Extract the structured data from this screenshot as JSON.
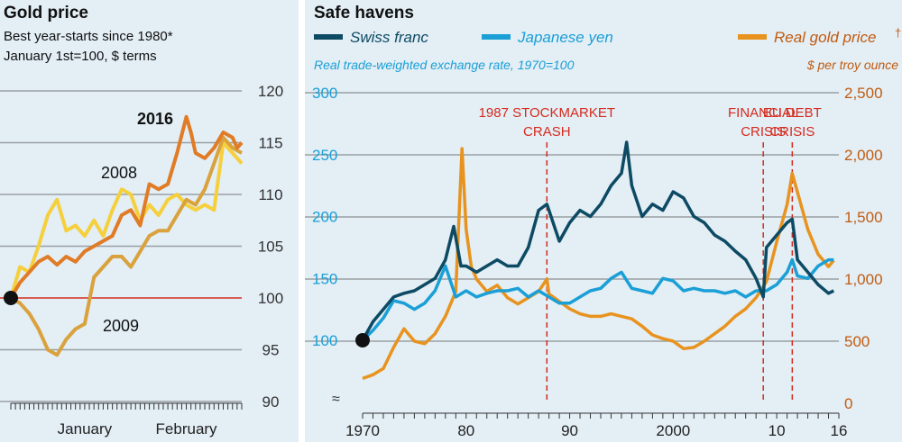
{
  "left": {
    "title": "Gold price",
    "subtitle_line1": "Best year-starts since 1980*",
    "subtitle_line2": "January 1st=100, $ terms",
    "x_tick_labels": [
      "January",
      "February"
    ],
    "chart_data": {
      "type": "line",
      "title": "Gold price",
      "subtitle": "Best year-starts since 1980* January 1st=100, $ terms",
      "ylim": [
        90,
        120
      ],
      "y_ticks": [
        90,
        95,
        100,
        105,
        110,
        115,
        120
      ],
      "x_range_days": [
        0,
        50
      ],
      "x_label_positions": {
        "January": 16,
        "February": 38
      },
      "reference_line": 100,
      "series": [
        {
          "name": "2016",
          "color": "#e07b26",
          "x": [
            0,
            2,
            4,
            6,
            8,
            10,
            12,
            14,
            16,
            18,
            20,
            22,
            24,
            26,
            28,
            30,
            32,
            34,
            36,
            38,
            39,
            40,
            42,
            44,
            46,
            48,
            49,
            50
          ],
          "values": [
            100,
            101.5,
            102.5,
            103.5,
            104,
            103.2,
            104,
            103.5,
            104.5,
            105,
            105.5,
            106,
            108,
            108.5,
            107,
            111,
            110.5,
            111,
            114,
            117.5,
            116,
            114,
            113.5,
            114.5,
            116,
            115.5,
            114.5,
            115
          ]
        },
        {
          "name": "2008",
          "color": "#f5d03c",
          "x": [
            0,
            2,
            4,
            6,
            8,
            10,
            12,
            14,
            16,
            18,
            20,
            22,
            24,
            26,
            28,
            30,
            32,
            34,
            36,
            38,
            40,
            42,
            44,
            46,
            48,
            50
          ],
          "values": [
            100,
            103,
            102.5,
            105,
            108,
            109.5,
            106.5,
            107,
            106,
            107.5,
            106,
            108.5,
            110.5,
            110,
            107.5,
            109,
            108,
            109.5,
            110,
            109,
            108.5,
            109,
            108.5,
            115,
            114,
            113
          ]
        },
        {
          "name": "2009",
          "color": "#d9a23c",
          "x": [
            0,
            2,
            4,
            6,
            8,
            10,
            12,
            14,
            16,
            18,
            20,
            22,
            24,
            26,
            28,
            30,
            32,
            34,
            36,
            38,
            40,
            42,
            44,
            46,
            48,
            50
          ],
          "values": [
            100,
            99.5,
            98.5,
            97,
            95,
            94.5,
            96,
            97,
            97.5,
            102,
            103,
            104,
            104,
            103,
            104.5,
            106,
            106.5,
            106.5,
            108,
            109.5,
            109,
            110.5,
            113,
            115.5,
            114.5,
            114
          ]
        }
      ],
      "series_labels": [
        "2016",
        "2008",
        "2009"
      ]
    }
  },
  "right": {
    "title": "Safe havens",
    "legend": [
      {
        "label": "Swiss franc",
        "color": "#0d4a63"
      },
      {
        "label": "Japanese yen",
        "color": "#1a9fd6"
      },
      {
        "label": "Real gold price",
        "color": "#e8931e"
      }
    ],
    "legend_dagger": "†",
    "left_axis_note": "Real trade-weighted exchange rate, 1970=100",
    "right_axis_note": "$ per troy ounce",
    "axis_break_symbol": "≈",
    "annotations": [
      {
        "year": 1987.8,
        "line1": "1987 STOCKMARKET",
        "line2": "CRASH"
      },
      {
        "year": 2008.7,
        "line1": "FINANCIAL",
        "line2": "CRISIS"
      },
      {
        "year": 2011.5,
        "line1": "EU DEBT",
        "line2": "CRISIS"
      }
    ],
    "chart_data": {
      "type": "line",
      "title": "Safe havens",
      "x_range": [
        1970,
        2016
      ],
      "x_tick_values": [
        1970,
        1980,
        1990,
        2000,
        2010,
        2016
      ],
      "x_tick_labels": [
        "1970",
        "80",
        "90",
        "2000",
        "10",
        "16"
      ],
      "ylim_left": [
        100,
        300
      ],
      "y_ticks_left": [
        100,
        150,
        200,
        250,
        300
      ],
      "ylim_right": [
        0,
        2500
      ],
      "y_ticks_right": [
        0,
        500,
        1000,
        1500,
        2000,
        2500
      ],
      "y_tick_labels_right": [
        "0",
        "500",
        "1,000",
        "1,500",
        "2,000",
        "2,500"
      ],
      "series": [
        {
          "name": "Swiss franc",
          "axis": "left",
          "color": "#0d4a63",
          "x": [
            1970,
            1971,
            1972,
            1973,
            1974,
            1975,
            1976,
            1977,
            1978,
            1978.8,
            1979.5,
            1980,
            1981,
            1982,
            1983,
            1984,
            1985,
            1986,
            1987,
            1987.8,
            1988,
            1989,
            1990,
            1991,
            1992,
            1993,
            1994,
            1995,
            1995.5,
            1996,
            1997,
            1998,
            1999,
            2000,
            2001,
            2002,
            2003,
            2004,
            2005,
            2006,
            2007,
            2008,
            2008.7,
            2009,
            2010,
            2011,
            2011.5,
            2012,
            2013,
            2014,
            2015,
            2015.5
          ],
          "values": [
            100,
            115,
            125,
            135,
            138,
            140,
            145,
            150,
            165,
            192,
            160,
            160,
            155,
            160,
            165,
            160,
            160,
            175,
            205,
            210,
            205,
            180,
            195,
            205,
            200,
            210,
            225,
            235,
            260,
            225,
            200,
            210,
            205,
            220,
            215,
            200,
            195,
            185,
            180,
            172,
            165,
            150,
            135,
            175,
            185,
            195,
            198,
            165,
            155,
            145,
            138,
            140
          ]
        },
        {
          "name": "Japanese yen",
          "axis": "left",
          "color": "#1a9fd6",
          "x": [
            1970,
            1971,
            1972,
            1973,
            1974,
            1975,
            1976,
            1977,
            1978,
            1979,
            1980,
            1981,
            1982,
            1983,
            1984,
            1985,
            1986,
            1987,
            1988,
            1989,
            1990,
            1991,
            1992,
            1993,
            1994,
            1995,
            1996,
            1997,
            1998,
            1999,
            2000,
            2001,
            2002,
            2003,
            2004,
            2005,
            2006,
            2007,
            2008,
            2009,
            2010,
            2011,
            2011.5,
            2012,
            2013,
            2014,
            2015,
            2015.5
          ],
          "values": [
            100,
            108,
            118,
            132,
            130,
            125,
            130,
            140,
            160,
            135,
            140,
            135,
            138,
            140,
            140,
            142,
            135,
            140,
            135,
            130,
            130,
            135,
            140,
            142,
            150,
            155,
            142,
            140,
            138,
            150,
            148,
            140,
            142,
            140,
            140,
            138,
            140,
            135,
            140,
            140,
            145,
            155,
            165,
            152,
            150,
            160,
            165,
            165
          ]
        },
        {
          "name": "Real gold price",
          "axis": "right",
          "color": "#e8931e",
          "x": [
            1970,
            1971,
            1972,
            1973,
            1974,
            1975,
            1976,
            1977,
            1978,
            1979,
            1979.6,
            1980,
            1980.5,
            1981,
            1982,
            1983,
            1984,
            1985,
            1986,
            1987,
            1987.8,
            1988,
            1989,
            1990,
            1991,
            1992,
            1993,
            1994,
            1995,
            1996,
            1997,
            1998,
            1999,
            2000,
            2001,
            2002,
            2003,
            2004,
            2005,
            2006,
            2007,
            2008,
            2009,
            2010,
            2011,
            2011.5,
            2012,
            2013,
            2014,
            2015,
            2015.5
          ],
          "values": [
            200,
            230,
            280,
            450,
            600,
            500,
            480,
            560,
            700,
            900,
            2050,
            1400,
            1100,
            1000,
            900,
            950,
            850,
            800,
            850,
            900,
            1000,
            880,
            820,
            760,
            720,
            700,
            700,
            720,
            700,
            680,
            620,
            550,
            520,
            500,
            440,
            450,
            500,
            560,
            620,
            700,
            760,
            850,
            980,
            1300,
            1600,
            1850,
            1700,
            1400,
            1200,
            1100,
            1150
          ]
        }
      ]
    }
  }
}
